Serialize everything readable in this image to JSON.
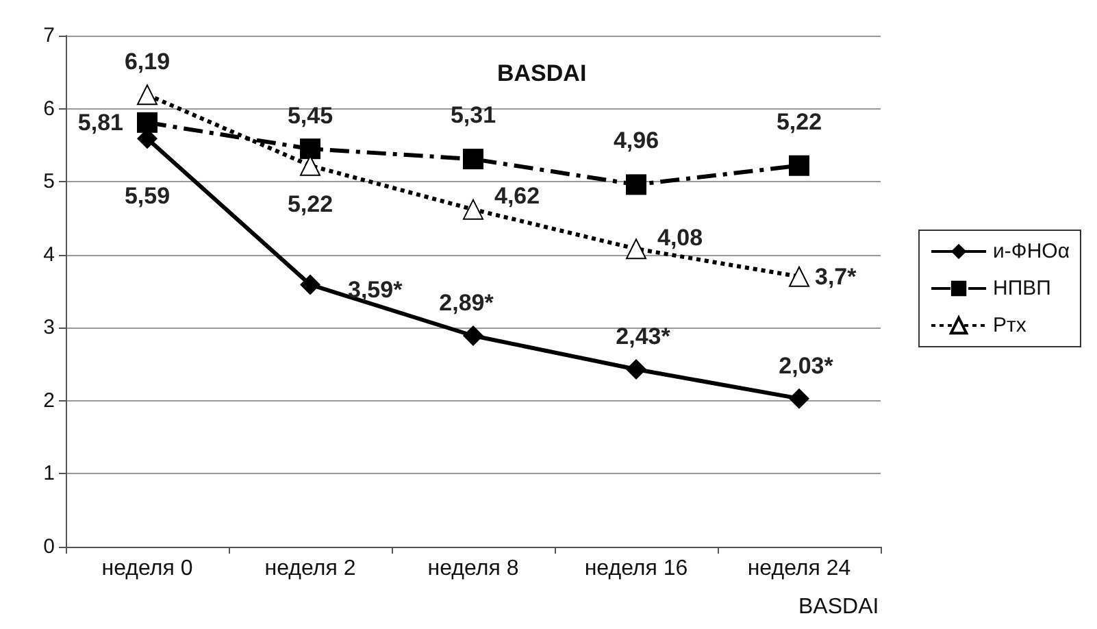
{
  "chart_data": {
    "type": "line",
    "title": "BASDAI",
    "xlabel": "BASDAI",
    "categories": [
      "неделя 0",
      "неделя 2",
      "неделя 8",
      "неделя 16",
      "неделя 24"
    ],
    "series": [
      {
        "name": "и-ФНОα",
        "color": "#000000",
        "marker": "diamond",
        "line_style": "solid",
        "values": [
          5.59,
          3.59,
          2.89,
          2.43,
          2.03
        ],
        "value_labels": [
          "5,59",
          "3,59*",
          "2,89*",
          "2,43*",
          "2,03*"
        ]
      },
      {
        "name": "НПВП",
        "color": "#000000",
        "marker": "square",
        "line_style": "dashed",
        "values": [
          5.81,
          5.45,
          5.31,
          4.96,
          5.22
        ],
        "value_labels": [
          "5,81",
          "5,45",
          "5,31",
          "4,96",
          "5,22"
        ]
      },
      {
        "name": "Ртх",
        "color": "#000000",
        "marker": "triangle",
        "line_style": "dotted",
        "values": [
          6.19,
          5.22,
          4.62,
          4.08,
          3.7
        ],
        "value_labels": [
          "6,19",
          "5,22",
          "4,62",
          "4,08",
          "3,7*"
        ]
      }
    ],
    "ylim": [
      0,
      7
    ],
    "yticks": [
      0,
      1,
      2,
      3,
      4,
      5,
      6,
      7
    ],
    "grid": "y",
    "legend": "right"
  }
}
